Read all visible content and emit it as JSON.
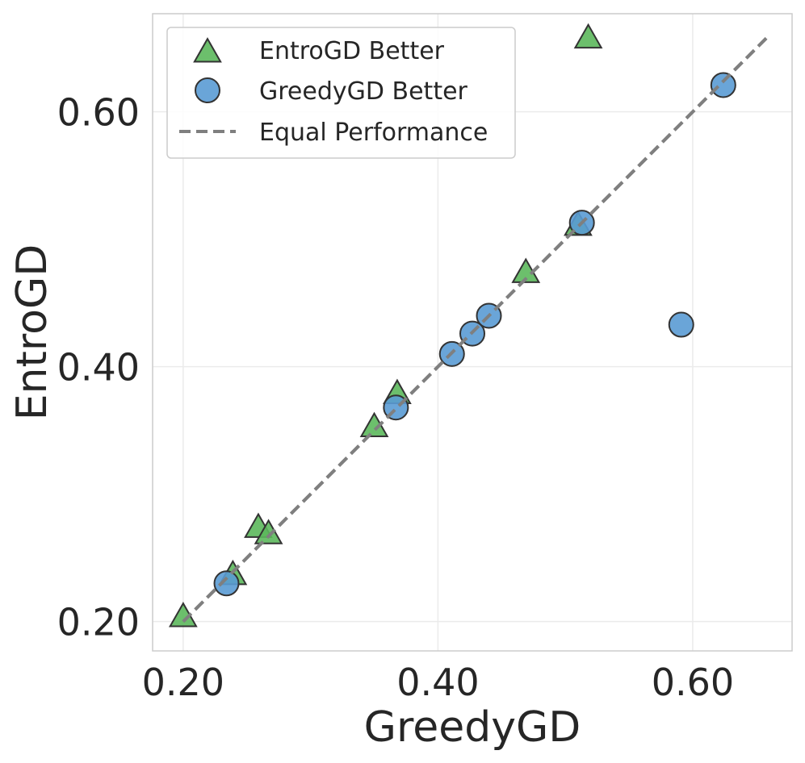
{
  "chart_data": {
    "type": "scatter",
    "title": "",
    "xlabel": "GreedyGD",
    "ylabel": "EntroGD",
    "xlim": [
      0.176,
      0.678
    ],
    "ylim": [
      0.177,
      0.677
    ],
    "xticks": [
      {
        "value": 0.2,
        "label": "0.20"
      },
      {
        "value": 0.4,
        "label": "0.40"
      },
      {
        "value": 0.6,
        "label": "0.60"
      }
    ],
    "yticks": [
      {
        "value": 0.2,
        "label": "0.20"
      },
      {
        "value": 0.4,
        "label": "0.40"
      },
      {
        "value": 0.6,
        "label": "0.60"
      }
    ],
    "grid": true,
    "legend_position": "top-left",
    "series": [
      {
        "name": "EntroGD Better",
        "marker": "triangle",
        "color": "#5cb85c",
        "points": [
          {
            "x": 0.2,
            "y": 0.203
          },
          {
            "x": 0.239,
            "y": 0.236
          },
          {
            "x": 0.259,
            "y": 0.273
          },
          {
            "x": 0.267,
            "y": 0.268
          },
          {
            "x": 0.35,
            "y": 0.352
          },
          {
            "x": 0.368,
            "y": 0.378
          },
          {
            "x": 0.469,
            "y": 0.473
          },
          {
            "x": 0.51,
            "y": 0.51
          },
          {
            "x": 0.518,
            "y": 0.657
          }
        ]
      },
      {
        "name": "GreedyGD Better",
        "marker": "circle",
        "color": "#5a9bd4",
        "points": [
          {
            "x": 0.234,
            "y": 0.23
          },
          {
            "x": 0.367,
            "y": 0.368
          },
          {
            "x": 0.411,
            "y": 0.41
          },
          {
            "x": 0.427,
            "y": 0.426
          },
          {
            "x": 0.44,
            "y": 0.44
          },
          {
            "x": 0.513,
            "y": 0.513
          },
          {
            "x": 0.591,
            "y": 0.433
          },
          {
            "x": 0.624,
            "y": 0.621
          }
        ]
      }
    ],
    "reference_line": {
      "name": "Equal Performance",
      "style": "dashed",
      "color": "#7f7f7f",
      "from": [
        0.2,
        0.2
      ],
      "to": [
        0.658,
        0.658
      ]
    }
  }
}
